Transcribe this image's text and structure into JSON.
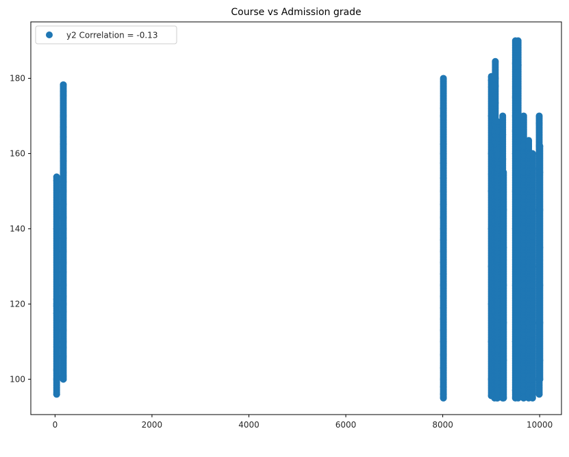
{
  "chart_data": {
    "type": "scatter",
    "title": "Course vs Admission grade",
    "xlabel": "",
    "ylabel": "",
    "xlim": [
      -500,
      10450
    ],
    "ylim": [
      90.6,
      195.0
    ],
    "xticks": [
      0,
      2000,
      4000,
      6000,
      8000,
      10000
    ],
    "xtick_labels": [
      "0",
      "2000",
      "4000",
      "6000",
      "8000",
      "10000"
    ],
    "yticks": [
      100,
      120,
      140,
      160,
      180
    ],
    "ytick_labels": [
      "100",
      "120",
      "140",
      "160",
      "180"
    ],
    "grid": false,
    "legend": {
      "placement": "top-left",
      "entries": [
        "y2 Correlation = -0.13"
      ]
    },
    "series": [
      {
        "name": "y2 Correlation = -0.13",
        "color": "#1f77b4",
        "clusters": [
          {
            "x": 33,
            "y_min": 96.0,
            "y_max": 153.8,
            "y": [
              96.0,
              100.0,
              102.5,
              117.5,
              119.5,
              120.0,
              121.2,
              140.0,
              152.8,
              153.8
            ]
          },
          {
            "x": 171,
            "y_min": 100.0,
            "y_max": 178.3,
            "y": [
              100.0,
              100.8,
              106.0,
              108.5,
              110.0,
              113.0,
              115.5,
              118.0,
              120.0,
              122.0,
              125.0,
              128.5,
              131.0,
              134.0,
              137.5,
              140.0,
              143.0,
              146.5,
              150.0,
              152.5,
              155.0,
              158.0,
              160.5,
              162.5,
              164.5,
              167.0,
              170.0,
              175.5,
              176.5,
              178.3
            ]
          },
          {
            "x": 8014,
            "y_min": 95.0,
            "y_max": 180.0,
            "y": [
              95.0,
              96.0,
              98.0,
              100.0,
              103.0,
              106.5,
              110.0,
              113.0,
              116.0,
              119.0,
              122.0,
              125.0,
              128.0,
              131.0,
              134.0,
              137.0,
              140.0,
              143.0,
              146.5,
              150.0,
              153.5,
              157.5,
              160.0,
              162.5,
              170.0,
              172.0,
              180.0
            ]
          },
          {
            "x": 9003,
            "y_min": 95.6,
            "y_max": 180.5,
            "y": [
              95.6,
              100.0,
              110.0,
              120.0,
              130.0,
              140.0,
              150.0,
              160.0,
              170.0,
              179.5,
              180.5
            ]
          },
          {
            "x": 9070,
            "y_min": 95.0,
            "y_max": 169.5,
            "y": [
              95.0,
              105.0,
              115.0,
              125.0,
              135.0,
              145.0,
              155.0,
              165.0,
              169.5
            ]
          },
          {
            "x": 9085,
            "y_min": 96.0,
            "y_max": 184.5,
            "y": [
              96.0,
              108.0,
              118.0,
              130.0,
              142.0,
              155.0,
              166.0,
              173.5,
              178.0,
              180.0,
              184.5
            ]
          },
          {
            "x": 9119,
            "y_min": 95.0,
            "y_max": 162.5,
            "y": [
              95.0,
              105.0,
              115.0,
              125.0,
              135.0,
              145.0,
              155.0,
              162.5
            ]
          },
          {
            "x": 9130,
            "y_min": 95.0,
            "y_max": 168.5,
            "y": [
              95.0,
              106.0,
              117.0,
              128.0,
              139.0,
              150.0,
              161.0,
              168.5
            ]
          },
          {
            "x": 9147,
            "y_min": 96.0,
            "y_max": 160.0,
            "y": [
              96.0,
              108.0,
              120.0,
              132.0,
              144.0,
              156.0,
              160.0
            ]
          },
          {
            "x": 9238,
            "y_min": 95.0,
            "y_max": 170.0,
            "y": [
              95.0,
              97.0,
              110.0,
              120.0,
              130.0,
              140.0,
              150.0,
              158.5,
              165.0,
              170.0
            ]
          },
          {
            "x": 9254,
            "y_min": 95.0,
            "y_max": 155.0,
            "y": [
              95.0,
              105.0,
              115.0,
              125.0,
              135.0,
              145.0,
              155.0
            ]
          },
          {
            "x": 9500,
            "y_min": 95.0,
            "y_max": 190.0,
            "y": [
              95.0,
              97.0,
              110.0,
              125.0,
              140.0,
              150.0,
              160.0,
              166.0,
              170.0,
              175.0,
              184.0,
              190.0
            ]
          },
          {
            "x": 9556,
            "y_min": 95.0,
            "y_max": 190.0,
            "y": [
              95.0,
              108.0,
              122.0,
              137.0,
              150.0,
              160.0,
              168.5,
              183.5,
              190.0
            ]
          },
          {
            "x": 9670,
            "y_min": 95.0,
            "y_max": 170.0,
            "y": [
              95.0,
              97.0,
              110.0,
              125.0,
              140.0,
              155.0,
              162.0,
              170.0
            ]
          },
          {
            "x": 9773,
            "y_min": 95.0,
            "y_max": 163.5,
            "y": [
              95.0,
              96.0,
              100.0,
              115.0,
              130.0,
              145.0,
              155.0,
              162.0,
              163.5
            ]
          },
          {
            "x": 9853,
            "y_min": 95.0,
            "y_max": 160.0,
            "y": [
              95.0,
              100.0,
              112.0,
              125.0,
              138.0,
              150.0,
              160.0
            ]
          },
          {
            "x": 9991,
            "y_min": 96.0,
            "y_max": 170.0,
            "y": [
              96.0,
              100.0,
              115.0,
              130.0,
              145.0,
              156.0,
              160.0,
              162.0,
              168.0,
              170.0
            ]
          },
          {
            "x": 10003,
            "y_min": 100.0,
            "y_max": 162.0,
            "y": [
              100.0,
              105.0,
              115.0,
              125.0,
              135.0,
              145.0,
              155.0,
              162.0
            ]
          }
        ]
      }
    ]
  }
}
